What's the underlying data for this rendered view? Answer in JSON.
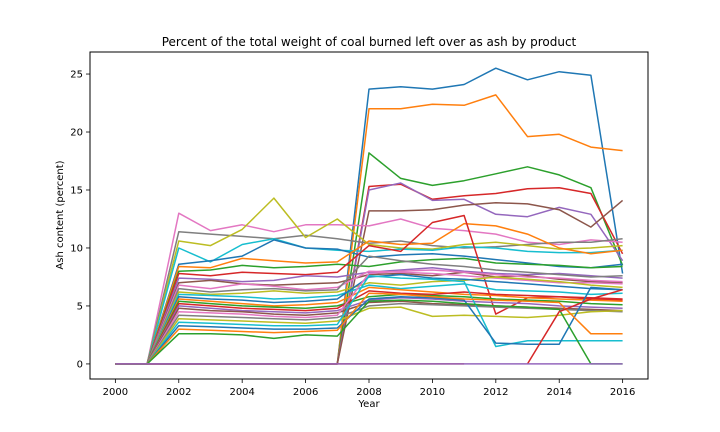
{
  "chart_data": {
    "type": "line",
    "title": "Percent of the total weight of coal burned left over as ash by product",
    "xlabel": "Year",
    "ylabel": "Ash content (percent)",
    "xlim": [
      1999.2,
      2016.8
    ],
    "ylim": [
      -1.3,
      26.9
    ],
    "xticks": [
      2000,
      2002,
      2004,
      2006,
      2008,
      2010,
      2012,
      2014,
      2016
    ],
    "yticks": [
      0,
      5,
      10,
      15,
      20,
      25
    ],
    "grid": false,
    "legend": "none",
    "palette": [
      "#1f77b4",
      "#ff7f0e",
      "#2ca02c",
      "#d62728",
      "#9467bd",
      "#8c564b",
      "#e377c2",
      "#7f7f7f",
      "#bcbd22",
      "#17becf"
    ],
    "x": [
      2000,
      2001,
      2002,
      2003,
      2004,
      2005,
      2006,
      2007,
      2008,
      2009,
      2010,
      2011,
      2012,
      2013,
      2014,
      2015,
      2016
    ],
    "series": [
      {
        "values": [
          0,
          0,
          0,
          0,
          0,
          0,
          0,
          0,
          23.7,
          23.9,
          23.7,
          24.1,
          25.5,
          24.5,
          25.2,
          24.9,
          7.8
        ]
      },
      {
        "values": [
          0,
          0,
          0,
          0,
          0,
          0,
          0,
          0,
          22.0,
          22.0,
          22.4,
          22.3,
          23.2,
          19.6,
          19.8,
          18.7,
          18.4
        ]
      },
      {
        "values": [
          0,
          0,
          0,
          0,
          0,
          0,
          0,
          0,
          18.2,
          16.0,
          15.4,
          15.8,
          16.4,
          17.0,
          16.3,
          15.2,
          8.5
        ]
      },
      {
        "values": [
          0,
          0,
          0,
          0,
          0,
          0,
          0,
          0,
          15.3,
          15.5,
          14.2,
          14.5,
          14.7,
          15.1,
          15.2,
          14.7,
          9.5
        ]
      },
      {
        "values": [
          0,
          0,
          0,
          0,
          0,
          0,
          0,
          0,
          15.0,
          15.6,
          14.1,
          14.2,
          12.9,
          12.7,
          13.5,
          12.9,
          8.9
        ]
      },
      {
        "values": [
          0,
          0,
          0,
          0,
          0,
          0,
          0,
          0,
          13.2,
          13.2,
          13.3,
          13.7,
          13.9,
          13.8,
          13.3,
          11.8,
          14.1
        ]
      },
      {
        "values": [
          0,
          0,
          13.0,
          11.5,
          12.0,
          11.4,
          12.0,
          12.0,
          11.9,
          12.5,
          11.7,
          11.5,
          11.2,
          10.5,
          10.3,
          10.7,
          10.5
        ]
      },
      {
        "values": [
          0,
          0,
          11.4,
          11.2,
          11.0,
          10.8,
          11.1,
          10.8,
          10.4,
          10.6,
          10.2,
          10.0,
          10.1,
          10.3,
          10.5,
          10.5,
          10.8
        ]
      },
      {
        "values": [
          0,
          0,
          10.6,
          10.2,
          11.6,
          14.3,
          10.9,
          12.5,
          10.3,
          10.0,
          9.9,
          10.3,
          10.5,
          10.2,
          9.9,
          10.0,
          10.2
        ]
      },
      {
        "values": [
          0,
          0,
          10.0,
          8.8,
          10.3,
          10.8,
          10.0,
          9.8,
          9.7,
          9.9,
          9.8,
          10.1,
          10.0,
          9.7,
          9.6,
          9.6,
          9.8
        ]
      },
      {
        "values": [
          0,
          0,
          8.6,
          8.9,
          9.3,
          10.7,
          10.0,
          9.9,
          9.2,
          9.4,
          9.5,
          9.3,
          9.0,
          8.7,
          8.4,
          8.3,
          8.6
        ]
      },
      {
        "values": [
          0,
          0,
          8.4,
          8.3,
          9.1,
          8.9,
          8.7,
          8.8,
          10.6,
          10.3,
          10.4,
          12.1,
          11.9,
          11.2,
          10.0,
          9.5,
          9.8
        ]
      },
      {
        "values": [
          0,
          0,
          8.0,
          8.1,
          8.5,
          8.3,
          8.4,
          8.6,
          8.4,
          8.8,
          9.0,
          9.1,
          8.7,
          8.6,
          8.5,
          8.3,
          8.4
        ]
      },
      {
        "values": [
          0,
          0,
          7.8,
          7.6,
          7.9,
          7.8,
          7.7,
          7.9,
          10.2,
          9.7,
          12.2,
          12.8,
          4.3,
          5.7,
          5.8,
          5.6,
          5.5
        ]
      },
      {
        "values": [
          0,
          0,
          7.4,
          7.3,
          7.1,
          7.2,
          7.6,
          7.5,
          7.9,
          8.1,
          8.3,
          8.0,
          7.8,
          7.7,
          7.8,
          7.6,
          7.4
        ]
      },
      {
        "values": [
          0,
          0,
          7.0,
          7.2,
          6.9,
          6.8,
          6.9,
          7.0,
          7.7,
          7.8,
          7.6,
          7.9,
          7.5,
          7.6,
          7.3,
          7.1,
          7.0
        ]
      },
      {
        "values": [
          0,
          0,
          6.8,
          6.5,
          6.9,
          6.7,
          6.4,
          6.6,
          8.0,
          7.9,
          7.8,
          7.6,
          7.4,
          7.2,
          7.0,
          7.0,
          6.9
        ]
      },
      {
        "values": [
          0,
          0,
          6.5,
          6.2,
          6.4,
          6.5,
          6.3,
          6.4,
          9.3,
          8.9,
          8.6,
          8.4,
          8.1,
          7.9,
          7.7,
          7.5,
          7.6
        ]
      },
      {
        "values": [
          0,
          0,
          6.2,
          6.0,
          6.1,
          6.3,
          6.1,
          6.2,
          7.0,
          6.8,
          7.1,
          7.2,
          7.5,
          7.3,
          7.1,
          6.8,
          6.6
        ]
      },
      {
        "values": [
          0,
          0,
          6.0,
          5.9,
          5.8,
          5.6,
          5.7,
          5.9,
          6.8,
          6.5,
          6.7,
          6.9,
          6.4,
          6.3,
          6.2,
          6.0,
          6.1
        ]
      },
      {
        "values": [
          0,
          0,
          5.8,
          5.6,
          5.5,
          5.3,
          5.4,
          5.6,
          7.5,
          7.7,
          7.4,
          7.3,
          7.1,
          6.9,
          6.7,
          6.5,
          6.4
        ]
      },
      {
        "values": [
          0,
          0,
          5.6,
          5.4,
          5.2,
          5.0,
          5.1,
          5.3,
          6.6,
          6.4,
          6.2,
          6.0,
          5.9,
          5.7,
          5.6,
          5.5,
          5.4
        ]
      },
      {
        "values": [
          0,
          0,
          5.4,
          5.2,
          5.0,
          4.9,
          4.8,
          5.0,
          5.8,
          6.0,
          5.9,
          5.8,
          5.6,
          5.5,
          5.4,
          5.2,
          5.1
        ]
      },
      {
        "values": [
          0,
          0,
          5.2,
          5.0,
          4.8,
          4.7,
          4.6,
          4.8,
          6.3,
          6.1,
          6.0,
          6.2,
          6.0,
          5.9,
          5.8,
          5.7,
          5.6
        ]
      },
      {
        "values": [
          0,
          0,
          5.0,
          4.8,
          4.6,
          4.5,
          4.4,
          4.6,
          5.5,
          5.7,
          5.6,
          5.4,
          5.3,
          5.2,
          5.0,
          4.9,
          4.8
        ]
      },
      {
        "values": [
          0,
          0,
          4.8,
          4.6,
          4.5,
          4.3,
          4.2,
          4.4,
          5.3,
          5.4,
          5.2,
          5.1,
          5.0,
          4.9,
          4.8,
          4.7,
          4.6
        ]
      },
      {
        "values": [
          0,
          0,
          4.5,
          4.4,
          4.3,
          4.1,
          4.0,
          4.2,
          7.8,
          8.0,
          8.1,
          7.9,
          7.7,
          7.5,
          7.4,
          7.2,
          7.1
        ]
      },
      {
        "values": [
          0,
          0,
          4.2,
          4.1,
          4.0,
          3.9,
          3.8,
          4.0,
          5.0,
          5.2,
          5.1,
          5.0,
          4.9,
          4.8,
          4.7,
          4.6,
          4.5
        ]
      },
      {
        "values": [
          0,
          0,
          3.9,
          3.8,
          3.7,
          3.6,
          3.5,
          3.7,
          4.8,
          4.9,
          4.1,
          4.2,
          4.1,
          4.0,
          4.2,
          4.5,
          4.6
        ]
      },
      {
        "values": [
          0,
          0,
          3.6,
          3.5,
          3.4,
          3.3,
          3.3,
          3.4,
          7.6,
          7.4,
          7.3,
          7.1,
          1.5,
          2.0,
          2.0,
          2.0,
          2.0
        ]
      },
      {
        "values": [
          0,
          0,
          3.3,
          3.2,
          3.1,
          3.0,
          3.0,
          3.1,
          5.6,
          5.8,
          5.7,
          5.5,
          1.8,
          1.7,
          1.7,
          6.6,
          6.4
        ]
      },
      {
        "values": [
          0,
          0,
          3.0,
          2.9,
          2.8,
          2.7,
          2.8,
          2.9,
          6.1,
          6.0,
          5.8,
          5.6,
          5.5,
          5.4,
          5.3,
          2.6,
          2.6
        ]
      },
      {
        "values": [
          0,
          0,
          2.6,
          2.6,
          2.5,
          2.2,
          2.5,
          2.4,
          5.4,
          5.5,
          5.4,
          5.2,
          5.0,
          4.9,
          4.7,
          0,
          0
        ]
      },
      {
        "values": [
          0,
          0,
          0,
          0,
          0,
          0,
          0,
          0,
          0,
          0,
          0,
          0,
          null,
          0,
          4.5,
          5.6,
          6.4
        ]
      },
      {
        "values": [
          0,
          0,
          0,
          0,
          0,
          0,
          0,
          0,
          0,
          0,
          0,
          0,
          0,
          0,
          0,
          0,
          0
        ]
      }
    ]
  }
}
